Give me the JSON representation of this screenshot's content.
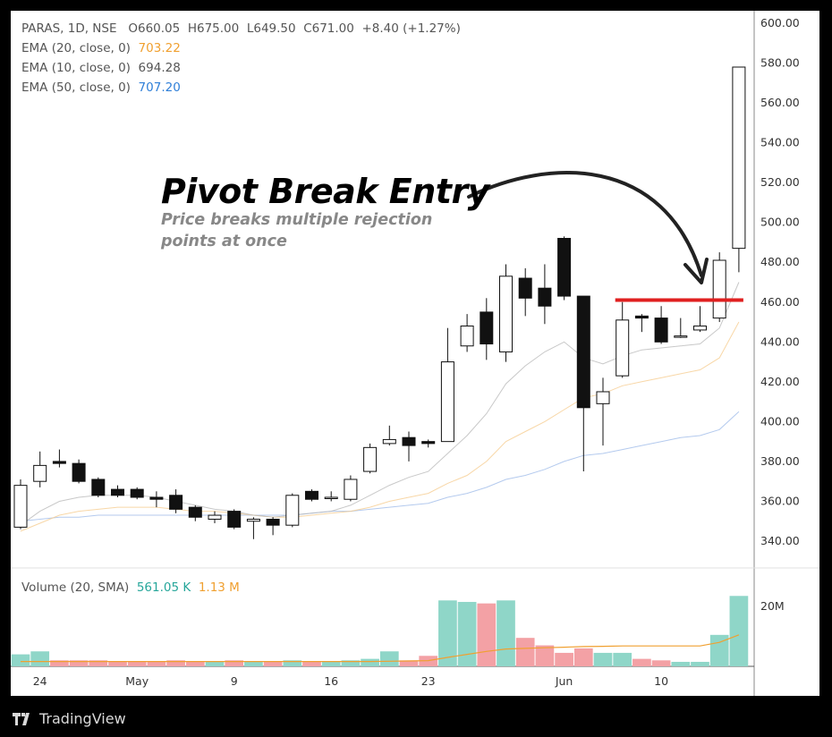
{
  "header": {
    "symbol_line": "PARAS, 1D, NSE",
    "ohlc": {
      "open": "O660.05",
      "high": "H675.00",
      "low": "L649.50",
      "close": "C671.00",
      "change": "+8.40 (+1.27%)"
    },
    "indicators": [
      {
        "label": "EMA (20, close, 0)",
        "value": "703.22",
        "color": "#f0a030"
      },
      {
        "label": "EMA (10, close, 0)",
        "value": "694.28",
        "color": "#555555"
      },
      {
        "label": "EMA (50, close, 0)",
        "value": "707.20",
        "color": "#2f7fd8"
      }
    ]
  },
  "annotation": {
    "title": "Pivot Break Entry",
    "subtitle": "Price breaks multiple rejection points at once",
    "pivot_level": 461
  },
  "volume_legend": {
    "label": "Volume (20, SMA)",
    "value1": "561.05 K",
    "value1_color": "#26a69a",
    "value2": "1.13 M",
    "value2_color": "#f0a030"
  },
  "brand": "TradingView",
  "chart_data": {
    "type": "candlestick",
    "y_ticks": [
      "600.00",
      "580.00",
      "560.00",
      "540.00",
      "520.00",
      "500.00",
      "480.00",
      "460.00",
      "440.00",
      "420.00",
      "400.00",
      "380.00",
      "360.00",
      "340.00"
    ],
    "y_range": [
      330,
      605
    ],
    "volume_tick": "20M",
    "volume_range": [
      0,
      25
    ],
    "x_labels": [
      {
        "label": "24",
        "index": 1
      },
      {
        "label": "May",
        "index": 6
      },
      {
        "label": "9",
        "index": 11
      },
      {
        "label": "16",
        "index": 16
      },
      {
        "label": "23",
        "index": 21
      },
      {
        "label": "Jun",
        "index": 28
      },
      {
        "label": "10",
        "index": 33
      }
    ],
    "candles": [
      {
        "o": 347,
        "h": 371,
        "l": 346,
        "c": 368,
        "v": 4
      },
      {
        "o": 370,
        "h": 385,
        "l": 367,
        "c": 378,
        "v": 5
      },
      {
        "o": 380,
        "h": 386,
        "l": 377,
        "c": 379,
        "v": 2
      },
      {
        "o": 379,
        "h": 381,
        "l": 369,
        "c": 370,
        "v": 2
      },
      {
        "o": 371,
        "h": 372,
        "l": 362,
        "c": 363,
        "v": 2
      },
      {
        "o": 366,
        "h": 368,
        "l": 362,
        "c": 363,
        "v": 1.5
      },
      {
        "o": 366,
        "h": 367,
        "l": 361,
        "c": 362,
        "v": 1.5
      },
      {
        "o": 362,
        "h": 365,
        "l": 357,
        "c": 361,
        "v": 1.5
      },
      {
        "o": 363,
        "h": 366,
        "l": 354,
        "c": 356,
        "v": 2
      },
      {
        "o": 357,
        "h": 358,
        "l": 350,
        "c": 352,
        "v": 1.5
      },
      {
        "o": 351,
        "h": 355,
        "l": 349,
        "c": 353,
        "v": 1.5
      },
      {
        "o": 355,
        "h": 356,
        "l": 346,
        "c": 347,
        "v": 2
      },
      {
        "o": 350,
        "h": 352,
        "l": 341,
        "c": 351,
        "v": 1.5
      },
      {
        "o": 351,
        "h": 352,
        "l": 343,
        "c": 348,
        "v": 1.5
      },
      {
        "o": 348,
        "h": 364,
        "l": 347,
        "c": 363,
        "v": 2
      },
      {
        "o": 365,
        "h": 366,
        "l": 360,
        "c": 361,
        "v": 1.5
      },
      {
        "o": 362,
        "h": 365,
        "l": 360,
        "c": 362,
        "v": 1.5
      },
      {
        "o": 361,
        "h": 373,
        "l": 360,
        "c": 371,
        "v": 2
      },
      {
        "o": 375,
        "h": 389,
        "l": 374,
        "c": 387,
        "v": 2.5
      },
      {
        "o": 389,
        "h": 398,
        "l": 388,
        "c": 391,
        "v": 5
      },
      {
        "o": 392,
        "h": 395,
        "l": 380,
        "c": 388,
        "v": 2
      },
      {
        "o": 390,
        "h": 391,
        "l": 387,
        "c": 389,
        "v": 3.5
      },
      {
        "o": 390,
        "h": 447,
        "l": 390,
        "c": 430,
        "v": 22
      },
      {
        "o": 438,
        "h": 454,
        "l": 435,
        "c": 448,
        "v": 21.5
      },
      {
        "o": 455,
        "h": 462,
        "l": 431,
        "c": 439,
        "v": 21
      },
      {
        "o": 435,
        "h": 479,
        "l": 430,
        "c": 473,
        "v": 22
      },
      {
        "o": 472,
        "h": 477,
        "l": 453,
        "c": 462,
        "v": 9.5
      },
      {
        "o": 467,
        "h": 479,
        "l": 449,
        "c": 458,
        "v": 7
      },
      {
        "o": 492,
        "h": 493,
        "l": 461,
        "c": 463,
        "v": 4.5
      },
      {
        "o": 463,
        "h": 463,
        "l": 375,
        "c": 407,
        "v": 6
      },
      {
        "o": 409,
        "h": 422,
        "l": 388,
        "c": 415,
        "v": 4.5
      },
      {
        "o": 423,
        "h": 460,
        "l": 422,
        "c": 451,
        "v": 4.5
      },
      {
        "o": 453,
        "h": 454,
        "l": 445,
        "c": 452,
        "v": 2.5
      },
      {
        "o": 452,
        "h": 458,
        "l": 439,
        "c": 440,
        "v": 2
      },
      {
        "o": 443,
        "h": 452,
        "l": 442,
        "c": 443,
        "v": 1.5
      },
      {
        "o": 446,
        "h": 458,
        "l": 445,
        "c": 448,
        "v": 1.5
      },
      {
        "o": 452,
        "h": 485,
        "l": 450,
        "c": 481,
        "v": 10.5
      },
      {
        "o": 487,
        "h": 578,
        "l": 475,
        "c": 578,
        "v": 23.5
      }
    ],
    "ema10": [
      348,
      355,
      360,
      362,
      363,
      363,
      363,
      362,
      360,
      358,
      356,
      355,
      353,
      352,
      353,
      354,
      355,
      358,
      363,
      368,
      372,
      375,
      384,
      393,
      404,
      419,
      428,
      435,
      440,
      432,
      429,
      433,
      436,
      437,
      438,
      439,
      447,
      470
    ],
    "ema20": [
      345,
      349,
      353,
      355,
      356,
      357,
      357,
      357,
      356,
      355,
      355,
      354,
      353,
      352,
      352,
      353,
      354,
      355,
      357,
      360,
      362,
      364,
      369,
      373,
      380,
      390,
      395,
      400,
      406,
      412,
      414,
      418,
      420,
      422,
      424,
      426,
      432,
      450
    ],
    "ema50": [
      350,
      351,
      352,
      352,
      353,
      353,
      353,
      353,
      353,
      353,
      353,
      353,
      353,
      353,
      353,
      354,
      355,
      355,
      356,
      357,
      358,
      359,
      362,
      364,
      367,
      371,
      373,
      376,
      380,
      383,
      384,
      386,
      388,
      390,
      392,
      393,
      396,
      405
    ],
    "volume_sma": [
      1.6,
      1.6,
      1.6,
      1.6,
      1.6,
      1.6,
      1.6,
      1.6,
      1.6,
      1.6,
      1.6,
      1.6,
      1.6,
      1.6,
      1.6,
      1.6,
      1.6,
      1.6,
      1.6,
      1.7,
      1.8,
      1.9,
      3,
      4,
      5,
      5.8,
      6,
      6.2,
      6.4,
      6.6,
      6.7,
      6.8,
      6.8,
      6.8,
      6.8,
      6.8,
      8,
      10.5
    ]
  }
}
